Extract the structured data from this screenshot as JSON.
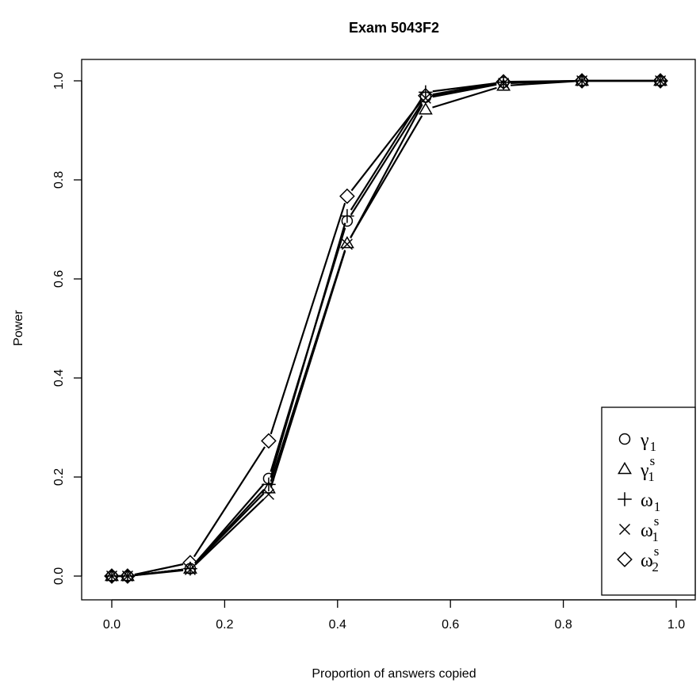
{
  "chart_data": {
    "type": "line",
    "title": "Exam 5043F2",
    "xlabel": "Proportion of answers copied",
    "ylabel": "Power",
    "xlim": [
      0.0,
      1.0
    ],
    "ylim": [
      0.0,
      1.0
    ],
    "xticks": [
      "0.0",
      "0.2",
      "0.4",
      "0.6",
      "0.8",
      "1.0"
    ],
    "yticks": [
      "0.0",
      "0.2",
      "0.4",
      "0.6",
      "0.8",
      "1.0"
    ],
    "grid": false,
    "legend_position": "bottom-right",
    "x": [
      0.0,
      0.028,
      0.139,
      0.278,
      0.417,
      0.556,
      0.694,
      0.833,
      0.972
    ],
    "series": [
      {
        "name": "γ1",
        "base": "γ",
        "sub": "1",
        "sup": "",
        "marker": "circle",
        "values": [
          0.0,
          0.0,
          0.015,
          0.197,
          0.717,
          0.967,
          0.997,
          1.0,
          1.0
        ]
      },
      {
        "name": "γ1s",
        "base": "γ",
        "sub": "1",
        "sup": "s",
        "marker": "triangle",
        "values": [
          0.0,
          0.0,
          0.015,
          0.177,
          0.672,
          0.942,
          0.99,
          1.0,
          1.0
        ]
      },
      {
        "name": "ω1",
        "base": "ω",
        "sub": "1",
        "sup": "",
        "marker": "plus",
        "values": [
          0.0,
          0.0,
          0.015,
          0.185,
          0.727,
          0.977,
          0.997,
          1.0,
          1.0
        ]
      },
      {
        "name": "ω1s",
        "base": "ω",
        "sub": "1",
        "sup": "s",
        "marker": "cross",
        "values": [
          0.0,
          0.0,
          0.013,
          0.165,
          0.67,
          0.965,
          0.995,
          1.0,
          1.0
        ]
      },
      {
        "name": "ω2s",
        "base": "ω",
        "sub": "2",
        "sup": "s",
        "marker": "diamond",
        "values": [
          0.0,
          0.0,
          0.027,
          0.273,
          0.767,
          0.97,
          0.998,
          1.0,
          1.0
        ]
      }
    ]
  }
}
